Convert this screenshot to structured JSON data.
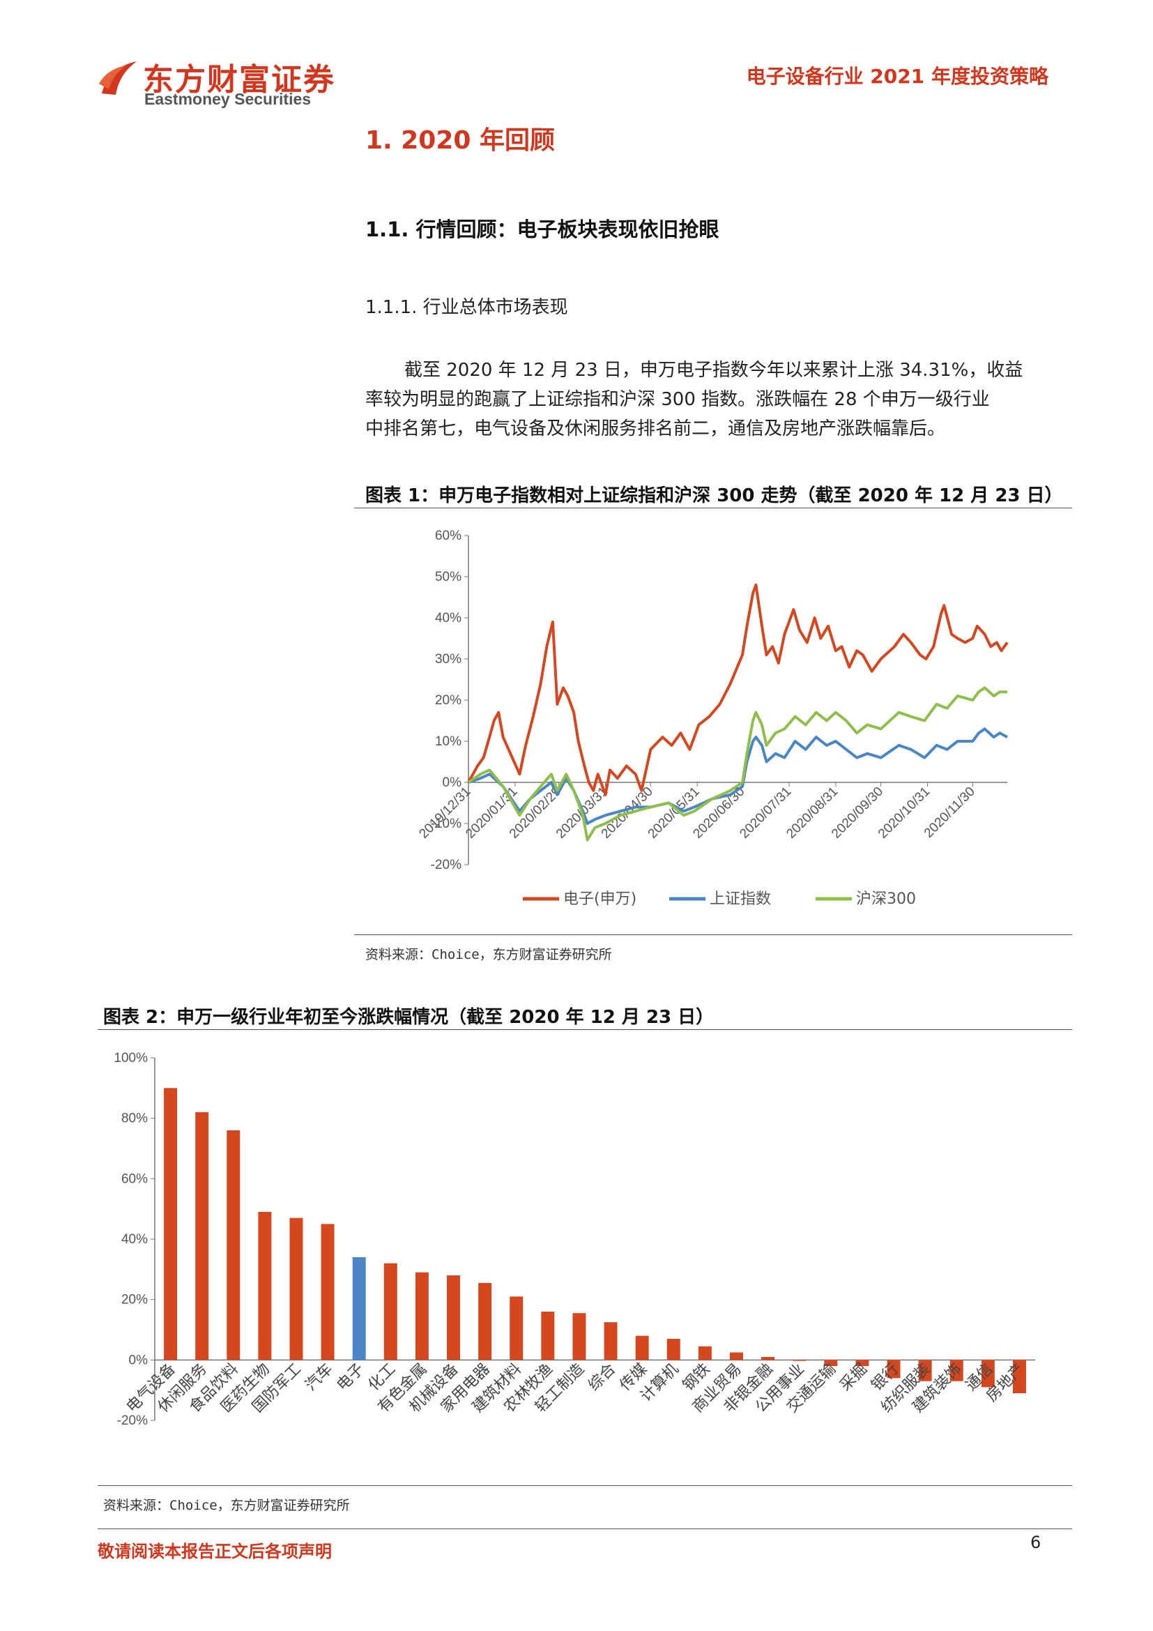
{
  "header": {
    "logo_cn": "东方财富证券",
    "logo_en": "Eastmoney Securities",
    "report_title": "电子设备行业 2021 年度投资策略"
  },
  "section": {
    "h1": "1. 2020 年回顾",
    "h2": "1.1. 行情回顾：电子板块表现依旧抢眼",
    "h3": "1.1.1. 行业总体市场表现",
    "paragraph_lines": [
      "截至 2020 年 12 月 23 日，申万电子指数今年以来累计上涨 34.31%，收益",
      "率较为明显的跑赢了上证综指和沪深 300 指数。涨跌幅在 28 个申万一级行业",
      "中排名第七，电气设备及休闲服务排名前二，通信及房地产涨跌幅靠后。"
    ]
  },
  "figure1": {
    "title": "图表 1：申万电子指数相对上证综指和沪深 300 走势（截至 2020 年 12 月 23 日）",
    "source": "资料来源：Choice，东方财富证券研究所"
  },
  "figure2": {
    "title": "图表 2：申万一级行业年初至今涨跌幅情况（截至 2020 年 12 月 23 日）",
    "source": "资料来源：Choice，东方财富证券研究所"
  },
  "footer": {
    "disclaimer": "敬请阅读本报告正文后各项声明",
    "page": "6"
  },
  "colors": {
    "red": "#d4471f",
    "blue": "#4a86c5",
    "green": "#8fbf4a",
    "brand": "#d2371d"
  },
  "chart_data": [
    {
      "type": "line",
      "title": "",
      "xlabel": "",
      "ylabel": "",
      "ylim": [
        -0.2,
        0.6
      ],
      "y_ticks": [
        "60%",
        "50%",
        "40%",
        "30%",
        "20%",
        "10%",
        "0%",
        "-10%",
        "-20%"
      ],
      "y_tick_values": [
        0.6,
        0.5,
        0.4,
        0.3,
        0.2,
        0.1,
        0,
        -0.1,
        -0.2
      ],
      "x_ticks": [
        "2019/12/31",
        "2020/01/31",
        "2020/02/29",
        "2020/03/31",
        "2020/04/30",
        "2020/05/31",
        "2020/06/30",
        "2020/07/31",
        "2020/08/31",
        "2020/09/30",
        "2020/10/31",
        "2020/11/30"
      ],
      "x_tick_dates": [
        "2019-12-31",
        "2020-01-31",
        "2020-02-29",
        "2020-03-31",
        "2020-04-30",
        "2020-05-31",
        "2020-06-30",
        "2020-07-31",
        "2020-08-31",
        "2020-09-30",
        "2020-10-31",
        "2020-11-30"
      ],
      "x_end": "2020-12-23",
      "legend_position": "bottom",
      "series": [
        {
          "name": "电子(申万)",
          "color": "#d4471f",
          "points": [
            [
              "2019-12-31",
              0.0
            ],
            [
              "2020-01-06",
              0.04
            ],
            [
              "2020-01-10",
              0.06
            ],
            [
              "2020-01-14",
              0.11
            ],
            [
              "2020-01-17",
              0.15
            ],
            [
              "2020-01-20",
              0.17
            ],
            [
              "2020-01-23",
              0.11
            ],
            [
              "2020-02-03",
              0.02
            ],
            [
              "2020-02-07",
              0.09
            ],
            [
              "2020-02-12",
              0.16
            ],
            [
              "2020-02-17",
              0.24
            ],
            [
              "2020-02-21",
              0.33
            ],
            [
              "2020-02-25",
              0.39
            ],
            [
              "2020-02-28",
              0.19
            ],
            [
              "2020-03-03",
              0.23
            ],
            [
              "2020-03-06",
              0.21
            ],
            [
              "2020-03-10",
              0.17
            ],
            [
              "2020-03-13",
              0.1
            ],
            [
              "2020-03-17",
              0.04
            ],
            [
              "2020-03-20",
              0.0
            ],
            [
              "2020-03-23",
              -0.02
            ],
            [
              "2020-03-26",
              0.02
            ],
            [
              "2020-03-31",
              -0.03
            ],
            [
              "2020-04-03",
              0.03
            ],
            [
              "2020-04-08",
              0.01
            ],
            [
              "2020-04-14",
              0.04
            ],
            [
              "2020-04-20",
              0.02
            ],
            [
              "2020-04-24",
              -0.02
            ],
            [
              "2020-04-30",
              0.08
            ],
            [
              "2020-05-08",
              0.11
            ],
            [
              "2020-05-14",
              0.09
            ],
            [
              "2020-05-20",
              0.12
            ],
            [
              "2020-05-26",
              0.08
            ],
            [
              "2020-06-01",
              0.14
            ],
            [
              "2020-06-08",
              0.16
            ],
            [
              "2020-06-15",
              0.19
            ],
            [
              "2020-06-22",
              0.24
            ],
            [
              "2020-06-30",
              0.31
            ],
            [
              "2020-07-03",
              0.38
            ],
            [
              "2020-07-07",
              0.46
            ],
            [
              "2020-07-09",
              0.48
            ],
            [
              "2020-07-13",
              0.38
            ],
            [
              "2020-07-16",
              0.31
            ],
            [
              "2020-07-20",
              0.33
            ],
            [
              "2020-07-24",
              0.29
            ],
            [
              "2020-07-28",
              0.36
            ],
            [
              "2020-08-03",
              0.42
            ],
            [
              "2020-08-07",
              0.37
            ],
            [
              "2020-08-12",
              0.34
            ],
            [
              "2020-08-17",
              0.4
            ],
            [
              "2020-08-21",
              0.35
            ],
            [
              "2020-08-26",
              0.38
            ],
            [
              "2020-08-31",
              0.32
            ],
            [
              "2020-09-04",
              0.33
            ],
            [
              "2020-09-09",
              0.28
            ],
            [
              "2020-09-14",
              0.32
            ],
            [
              "2020-09-18",
              0.31
            ],
            [
              "2020-09-24",
              0.27
            ],
            [
              "2020-09-30",
              0.3
            ],
            [
              "2020-10-09",
              0.33
            ],
            [
              "2020-10-15",
              0.36
            ],
            [
              "2020-10-20",
              0.34
            ],
            [
              "2020-10-26",
              0.31
            ],
            [
              "2020-10-30",
              0.3
            ],
            [
              "2020-11-04",
              0.33
            ],
            [
              "2020-11-09",
              0.41
            ],
            [
              "2020-11-11",
              0.43
            ],
            [
              "2020-11-16",
              0.36
            ],
            [
              "2020-11-20",
              0.35
            ],
            [
              "2020-11-25",
              0.34
            ],
            [
              "2020-11-30",
              0.35
            ],
            [
              "2020-12-03",
              0.38
            ],
            [
              "2020-12-08",
              0.36
            ],
            [
              "2020-12-12",
              0.33
            ],
            [
              "2020-12-16",
              0.34
            ],
            [
              "2020-12-19",
              0.32
            ],
            [
              "2020-12-23",
              0.34
            ]
          ]
        },
        {
          "name": "上证指数",
          "color": "#4a86c5",
          "points": [
            [
              "2019-12-31",
              0.0
            ],
            [
              "2020-01-08",
              0.01
            ],
            [
              "2020-01-14",
              0.02
            ],
            [
              "2020-01-23",
              -0.01
            ],
            [
              "2020-02-03",
              -0.07
            ],
            [
              "2020-02-10",
              -0.04
            ],
            [
              "2020-02-17",
              -0.02
            ],
            [
              "2020-02-24",
              0.0
            ],
            [
              "2020-02-28",
              -0.03
            ],
            [
              "2020-03-05",
              0.01
            ],
            [
              "2020-03-10",
              -0.02
            ],
            [
              "2020-03-16",
              -0.07
            ],
            [
              "2020-03-19",
              -0.1
            ],
            [
              "2020-03-24",
              -0.09
            ],
            [
              "2020-03-31",
              -0.08
            ],
            [
              "2020-04-10",
              -0.07
            ],
            [
              "2020-04-20",
              -0.06
            ],
            [
              "2020-04-30",
              -0.06
            ],
            [
              "2020-05-12",
              -0.05
            ],
            [
              "2020-05-22",
              -0.07
            ],
            [
              "2020-05-29",
              -0.06
            ],
            [
              "2020-06-10",
              -0.04
            ],
            [
              "2020-06-22",
              -0.03
            ],
            [
              "2020-06-30",
              -0.01
            ],
            [
              "2020-07-03",
              0.05
            ],
            [
              "2020-07-07",
              0.1
            ],
            [
              "2020-07-09",
              0.11
            ],
            [
              "2020-07-13",
              0.09
            ],
            [
              "2020-07-16",
              0.05
            ],
            [
              "2020-07-22",
              0.07
            ],
            [
              "2020-07-28",
              0.06
            ],
            [
              "2020-08-04",
              0.1
            ],
            [
              "2020-08-11",
              0.08
            ],
            [
              "2020-08-18",
              0.11
            ],
            [
              "2020-08-25",
              0.09
            ],
            [
              "2020-08-31",
              0.1
            ],
            [
              "2020-09-07",
              0.08
            ],
            [
              "2020-09-14",
              0.06
            ],
            [
              "2020-09-21",
              0.07
            ],
            [
              "2020-09-30",
              0.06
            ],
            [
              "2020-10-12",
              0.09
            ],
            [
              "2020-10-20",
              0.08
            ],
            [
              "2020-10-29",
              0.06
            ],
            [
              "2020-11-06",
              0.09
            ],
            [
              "2020-11-13",
              0.08
            ],
            [
              "2020-11-20",
              0.1
            ],
            [
              "2020-11-30",
              0.1
            ],
            [
              "2020-12-04",
              0.12
            ],
            [
              "2020-12-08",
              0.13
            ],
            [
              "2020-12-14",
              0.11
            ],
            [
              "2020-12-18",
              0.12
            ],
            [
              "2020-12-23",
              0.11
            ]
          ]
        },
        {
          "name": "沪深300",
          "color": "#8fbf4a",
          "points": [
            [
              "2019-12-31",
              0.0
            ],
            [
              "2020-01-08",
              0.02
            ],
            [
              "2020-01-14",
              0.03
            ],
            [
              "2020-01-23",
              -0.01
            ],
            [
              "2020-02-03",
              -0.08
            ],
            [
              "2020-02-10",
              -0.04
            ],
            [
              "2020-02-17",
              -0.01
            ],
            [
              "2020-02-24",
              0.02
            ],
            [
              "2020-02-28",
              -0.02
            ],
            [
              "2020-03-05",
              0.02
            ],
            [
              "2020-03-10",
              -0.02
            ],
            [
              "2020-03-16",
              -0.08
            ],
            [
              "2020-03-19",
              -0.14
            ],
            [
              "2020-03-24",
              -0.11
            ],
            [
              "2020-03-31",
              -0.1
            ],
            [
              "2020-04-10",
              -0.08
            ],
            [
              "2020-04-20",
              -0.07
            ],
            [
              "2020-04-30",
              -0.06
            ],
            [
              "2020-05-12",
              -0.05
            ],
            [
              "2020-05-22",
              -0.08
            ],
            [
              "2020-05-29",
              -0.07
            ],
            [
              "2020-06-10",
              -0.04
            ],
            [
              "2020-06-22",
              -0.02
            ],
            [
              "2020-06-30",
              0.0
            ],
            [
              "2020-07-03",
              0.07
            ],
            [
              "2020-07-07",
              0.15
            ],
            [
              "2020-07-09",
              0.17
            ],
            [
              "2020-07-13",
              0.14
            ],
            [
              "2020-07-16",
              0.09
            ],
            [
              "2020-07-22",
              0.12
            ],
            [
              "2020-07-28",
              0.13
            ],
            [
              "2020-08-04",
              0.16
            ],
            [
              "2020-08-11",
              0.14
            ],
            [
              "2020-08-18",
              0.17
            ],
            [
              "2020-08-25",
              0.15
            ],
            [
              "2020-08-31",
              0.17
            ],
            [
              "2020-09-07",
              0.15
            ],
            [
              "2020-09-14",
              0.12
            ],
            [
              "2020-09-21",
              0.14
            ],
            [
              "2020-09-30",
              0.13
            ],
            [
              "2020-10-12",
              0.17
            ],
            [
              "2020-10-20",
              0.16
            ],
            [
              "2020-10-29",
              0.15
            ],
            [
              "2020-11-06",
              0.19
            ],
            [
              "2020-11-13",
              0.18
            ],
            [
              "2020-11-20",
              0.21
            ],
            [
              "2020-11-30",
              0.2
            ],
            [
              "2020-12-04",
              0.22
            ],
            [
              "2020-12-08",
              0.23
            ],
            [
              "2020-12-14",
              0.21
            ],
            [
              "2020-12-18",
              0.22
            ],
            [
              "2020-12-23",
              0.22
            ]
          ]
        }
      ]
    },
    {
      "type": "bar",
      "title": "",
      "xlabel": "",
      "ylabel": "",
      "ylim": [
        -0.2,
        1.0
      ],
      "y_ticks": [
        "100%",
        "80%",
        "60%",
        "40%",
        "20%",
        "0%",
        "-20%"
      ],
      "y_tick_values": [
        1.0,
        0.8,
        0.6,
        0.4,
        0.2,
        0,
        -0.2
      ],
      "highlight_category": "电子",
      "bar_color": "#d4471f",
      "highlight_color": "#4a86c5",
      "categories": [
        "电气设备",
        "休闲服务",
        "食品饮料",
        "医药生物",
        "国防军工",
        "汽车",
        "电子",
        "化工",
        "有色金属",
        "机械设备",
        "家用电器",
        "建筑材料",
        "农林牧渔",
        "轻工制造",
        "综合",
        "传媒",
        "计算机",
        "钢铁",
        "商业贸易",
        "非银金融",
        "公用事业",
        "交通运输",
        "采掘",
        "银行",
        "纺织服装",
        "建筑装饰",
        "通信",
        "房地产"
      ],
      "values": [
        0.9,
        0.82,
        0.76,
        0.49,
        0.47,
        0.45,
        0.34,
        0.32,
        0.29,
        0.28,
        0.255,
        0.21,
        0.16,
        0.155,
        0.125,
        0.08,
        0.07,
        0.045,
        0.025,
        0.01,
        -0.003,
        -0.02,
        -0.02,
        -0.06,
        -0.07,
        -0.07,
        -0.09,
        -0.11
      ]
    }
  ]
}
